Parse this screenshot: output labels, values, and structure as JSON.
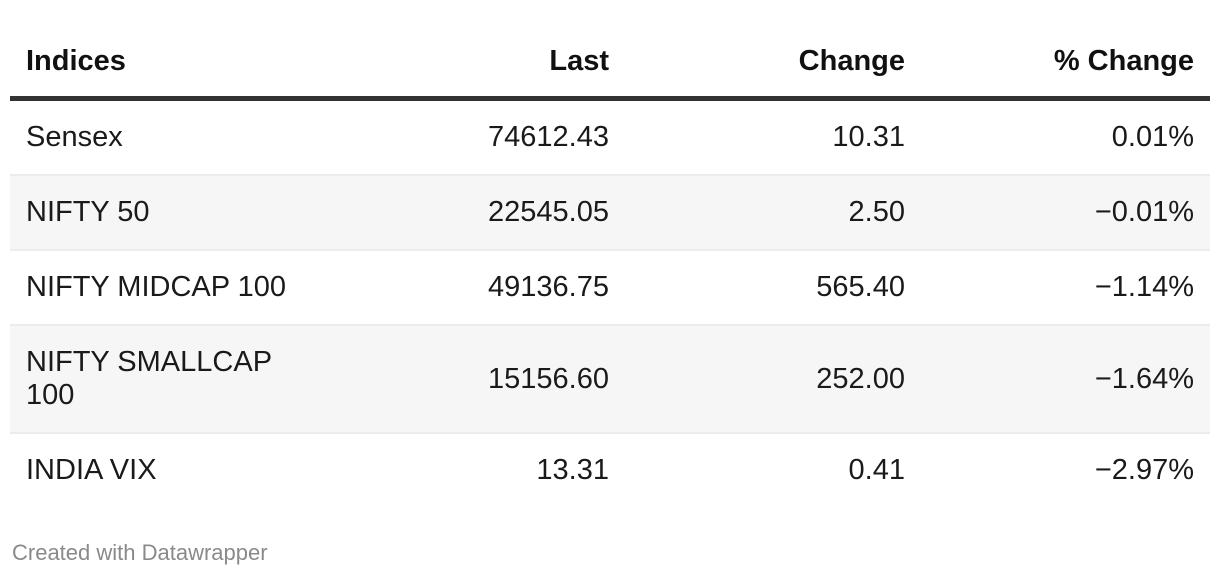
{
  "chart_data": {
    "type": "table",
    "columns": [
      {
        "label": "Indices",
        "align": "left"
      },
      {
        "label": "Last",
        "align": "right"
      },
      {
        "label": "Change",
        "align": "right"
      },
      {
        "label": "% Change",
        "align": "right"
      }
    ],
    "rows": [
      {
        "name": "Sensex",
        "last": "74612.43",
        "change": "10.31",
        "pct_change": "0.01%"
      },
      {
        "name": "NIFTY 50",
        "last": "22545.05",
        "change": "2.50",
        "pct_change": "−0.01%"
      },
      {
        "name": "NIFTY MIDCAP 100",
        "last": "49136.75",
        "change": "565.40",
        "pct_change": "−1.14%"
      },
      {
        "name": "NIFTY SMALLCAP 100",
        "last": "15156.60",
        "change": "252.00",
        "pct_change": "−1.64%"
      },
      {
        "name": "INDIA VIX",
        "last": "13.31",
        "change": "0.41",
        "pct_change": "−2.97%"
      }
    ]
  },
  "table": {
    "headers": {
      "indices": "Indices",
      "last": "Last",
      "change": "Change",
      "pct_change": "% Change"
    },
    "rows": [
      {
        "name": "Sensex",
        "last": "74612.43",
        "change": "10.31",
        "pct_change": "0.01%"
      },
      {
        "name": "NIFTY 50",
        "last": "22545.05",
        "change": "2.50",
        "pct_change": "−0.01%"
      },
      {
        "name": "NIFTY MIDCAP 100",
        "last": "49136.75",
        "change": "565.40",
        "pct_change": "−1.14%"
      },
      {
        "name": "NIFTY SMALLCAP 100",
        "last": "15156.60",
        "change": "252.00",
        "pct_change": "−1.64%"
      },
      {
        "name": "INDIA VIX",
        "last": "13.31",
        "change": "0.41",
        "pct_change": "−2.97%"
      }
    ]
  },
  "footer": {
    "attribution": "Created with Datawrapper"
  },
  "colors": {
    "header_rule": "#333333",
    "row_divider": "#ececec",
    "stripe": "#f6f6f6",
    "text": "#1a1a1a",
    "attribution_text": "#8a8a8a"
  }
}
